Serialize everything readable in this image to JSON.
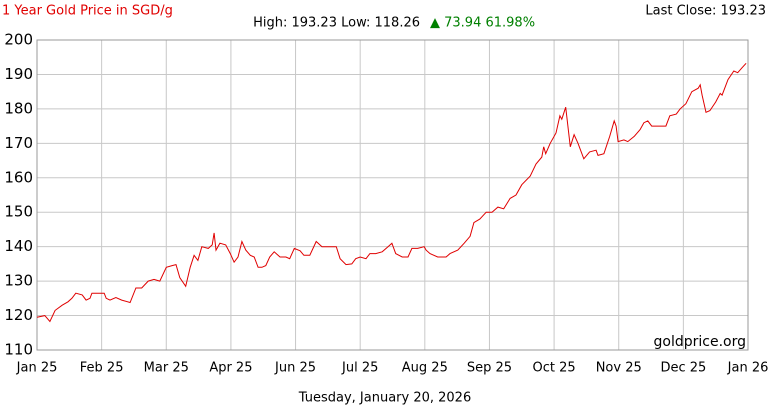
{
  "chart_data": {
    "type": "line",
    "title": "1 Year Gold Price in SGD/g",
    "high_low": "High: 193.23 Low: 118.26",
    "change": "▲ 73.94 61.98%",
    "last_close": "Last Close: 193.23",
    "watermark": "goldprice.org",
    "date": "Tuesday, January 20, 2026",
    "title_color": "#e00000",
    "change_color": "#008000",
    "grid": true,
    "xlim": [
      0,
      11
    ],
    "xticks": [
      {
        "value": 0,
        "label": "Jan 25"
      },
      {
        "value": 1,
        "label": "Feb 25"
      },
      {
        "value": 2,
        "label": "Mar 25"
      },
      {
        "value": 3,
        "label": "Apr 25"
      },
      {
        "value": 4,
        "label": "Jun 25"
      },
      {
        "value": 5,
        "label": "Jul 25"
      },
      {
        "value": 6,
        "label": "Aug 25"
      },
      {
        "value": 7,
        "label": "Sep 25"
      },
      {
        "value": 8,
        "label": "Oct 25"
      },
      {
        "value": 9,
        "label": "Nov 25"
      },
      {
        "value": 10,
        "label": "Dec 25"
      },
      {
        "value": 11,
        "label": "Jan 26"
      }
    ],
    "ylim": [
      110,
      200
    ],
    "yticks": [
      110,
      120,
      130,
      140,
      150,
      160,
      170,
      180,
      190,
      200
    ],
    "x": [
      0,
      0.12,
      0.2,
      0.28,
      0.39,
      0.48,
      0.54,
      0.6,
      0.7,
      0.76,
      0.82,
      0.85,
      0.97,
      1.04,
      1.07,
      1.13,
      1.22,
      1.31,
      1.44,
      1.53,
      1.62,
      1.72,
      1.81,
      1.9,
      2.0,
      2.09,
      2.15,
      2.21,
      2.3,
      2.37,
      2.43,
      2.49,
      2.55,
      2.65,
      2.71,
      2.74,
      2.77,
      2.83,
      2.92,
      2.99,
      3.05,
      3.11,
      3.17,
      3.23,
      3.3,
      3.36,
      3.42,
      3.48,
      3.54,
      3.6,
      3.67,
      3.76,
      3.85,
      3.91,
      3.98,
      4.07,
      4.13,
      4.22,
      4.32,
      4.41,
      4.53,
      4.63,
      4.69,
      4.78,
      4.87,
      4.93,
      5.0,
      5.09,
      5.15,
      5.24,
      5.34,
      5.43,
      5.49,
      5.55,
      5.65,
      5.74,
      5.8,
      5.89,
      5.99,
      6.02,
      6.08,
      6.2,
      6.33,
      6.39,
      6.51,
      6.61,
      6.7,
      6.76,
      6.85,
      6.95,
      7.04,
      7.13,
      7.22,
      7.32,
      7.41,
      7.5,
      7.63,
      7.72,
      7.81,
      7.84,
      7.87,
      7.94,
      8.03,
      8.09,
      8.12,
      8.18,
      8.25,
      8.31,
      8.37,
      8.46,
      8.55,
      8.65,
      8.68,
      8.77,
      8.86,
      8.93,
      8.96,
      8.99,
      9.08,
      9.14,
      9.24,
      9.33,
      9.39,
      9.45,
      9.51,
      9.64,
      9.73,
      9.79,
      9.89,
      9.95,
      10.04,
      10.13,
      10.23,
      10.26,
      10.29,
      10.35,
      10.41,
      10.5,
      10.57,
      10.6,
      10.69,
      10.78,
      10.84,
      10.91,
      10.97
    ],
    "series": [
      {
        "name": "Gold Price",
        "color": "#e00000",
        "values": [
          119.5,
          120,
          118.26,
          121.5,
          123,
          124,
          125,
          126.5,
          126,
          124.5,
          125,
          126.5,
          126.5,
          126.5,
          125,
          124.5,
          125.2,
          124.5,
          123.8,
          128,
          128,
          130,
          130.5,
          130,
          134,
          134.5,
          134.8,
          131,
          128.5,
          134,
          137.5,
          136,
          140,
          139.5,
          140.5,
          144,
          139,
          141,
          140.5,
          138,
          135.5,
          137,
          141.5,
          139,
          137.5,
          137,
          134,
          134,
          134.5,
          137,
          138.5,
          137,
          137,
          136.5,
          139.5,
          138.8,
          137.5,
          137.5,
          141.5,
          140,
          140,
          140,
          136.5,
          134.8,
          135,
          136.5,
          137,
          136.5,
          138,
          138,
          138.5,
          140,
          141,
          138,
          137,
          137,
          139.5,
          139.5,
          140,
          139,
          138,
          137,
          137,
          138,
          139,
          141,
          143,
          147,
          148,
          150,
          150,
          151.5,
          151,
          154,
          155,
          158,
          160.5,
          164,
          166,
          169,
          167,
          170,
          173,
          178,
          177,
          180.5,
          169,
          172.5,
          170,
          165.5,
          167.5,
          168,
          166.5,
          167,
          172,
          176.5,
          175,
          170.5,
          171,
          170.5,
          172,
          174,
          176,
          176.5,
          175,
          175,
          175,
          178,
          178.5,
          180,
          181.5,
          185,
          186,
          187,
          184,
          179,
          179.5,
          182,
          184.5,
          184,
          188.5,
          191,
          190.5,
          192,
          193.23
        ]
      }
    ]
  }
}
